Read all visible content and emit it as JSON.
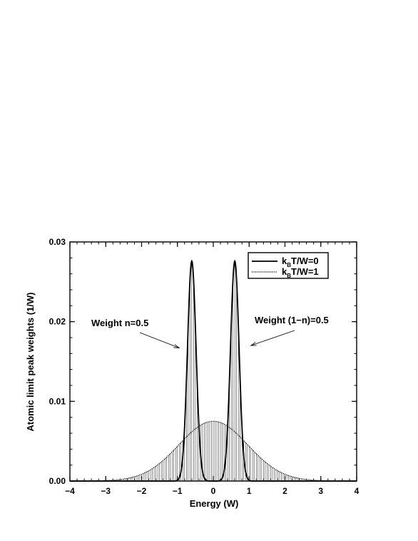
{
  "chart_data": {
    "type": "line",
    "xlabel": "Energy (W)",
    "ylabel": "Atomic limit peak weights (1/W)",
    "xlim": [
      -4,
      4
    ],
    "ylim": [
      0,
      0.03
    ],
    "x_ticks": [
      -4,
      -3,
      -2,
      -1,
      0,
      1,
      2,
      3,
      4
    ],
    "x_tick_labels": [
      "−4",
      "−3",
      "−2",
      "−1",
      "0",
      "1",
      "2",
      "3",
      "4"
    ],
    "y_ticks": [
      0,
      0.01,
      0.02,
      0.03
    ],
    "y_tick_labels": [
      "0.00",
      "0.01",
      "0.02",
      "0.03"
    ],
    "legend_position": "top-right",
    "series": [
      {
        "name": "k_BT/W=0",
        "legend_main": "k",
        "legend_sub": "B",
        "legend_rest": "T/W=0",
        "style": "solid",
        "color": "#000000",
        "peaks": [
          {
            "center": -0.6,
            "height": 0.0276,
            "half_width": 0.2
          },
          {
            "center": 0.6,
            "height": 0.0276,
            "half_width": 0.2
          }
        ]
      },
      {
        "name": "k_BT/W=1",
        "legend_main": "k",
        "legend_sub": "B",
        "legend_rest": "T/W=1",
        "style": "dotted",
        "color": "#000000",
        "peaks": [
          {
            "center": 0.0,
            "height": 0.0075,
            "half_width": 1.6
          }
        ]
      }
    ],
    "hatching": "vertical lines under curves",
    "annotations": [
      {
        "text": "Weight n=0.5",
        "points_to": {
          "x": -0.95,
          "y": 0.0167
        }
      },
      {
        "text": "Weight (1−n)=0.5",
        "points_to": {
          "x": 1.05,
          "y": 0.017
        }
      }
    ]
  }
}
